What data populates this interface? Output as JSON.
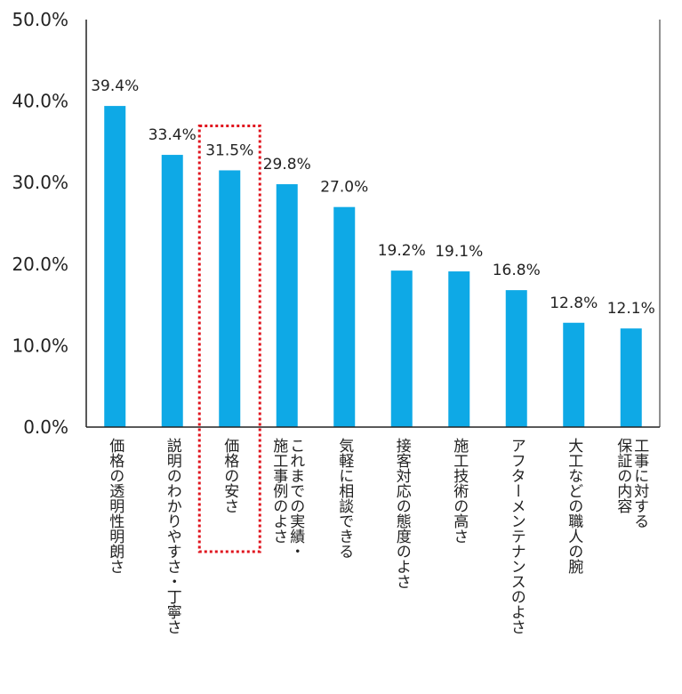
{
  "chart_data": {
    "type": "bar",
    "title": "",
    "xlabel": "",
    "ylabel": "",
    "ylim": [
      0,
      50
    ],
    "yticks": [
      "0.0%",
      "10.0%",
      "20.0%",
      "30.0%",
      "40.0%",
      "50.0%"
    ],
    "categories": [
      "価格の透明性明朗さ",
      "説明のわかりやすさ・丁寧さ",
      "価格の安さ",
      "これまでの実績・施工事例のよさ",
      "気軽に相談できる",
      "接客対応の態度のよさ",
      "施工技術の高さ",
      "アフターメンテナンスのよさ",
      "大工などの職人の腕",
      "工事に対する保証の内容"
    ],
    "category_lines": [
      [
        "価格の透明性明朗さ"
      ],
      [
        "説明のわかりやすさ・丁寧さ"
      ],
      [
        "価格の安さ"
      ],
      [
        "これまでの実績・",
        "施工事例のよさ"
      ],
      [
        "気軽に相談できる"
      ],
      [
        "接客対応の態度のよさ"
      ],
      [
        "施工技術の高さ"
      ],
      [
        "アフターメンテナンスのよさ"
      ],
      [
        "大工などの職人の腕"
      ],
      [
        "工事に対する",
        "保証の内容"
      ]
    ],
    "values": [
      39.4,
      33.4,
      31.5,
      29.8,
      27.0,
      19.2,
      19.1,
      16.8,
      12.8,
      12.1
    ],
    "data_labels": [
      "39.4%",
      "33.4%",
      "31.5%",
      "29.8%",
      "27.0%",
      "19.2%",
      "19.1%",
      "16.8%",
      "12.8%",
      "12.1%"
    ],
    "highlighted_category": "価格の安さ",
    "grid": false,
    "legend": "none"
  },
  "colors": {
    "bar": "#0EA9E6",
    "axis": "#222222",
    "highlight_box": "#E0141E"
  }
}
